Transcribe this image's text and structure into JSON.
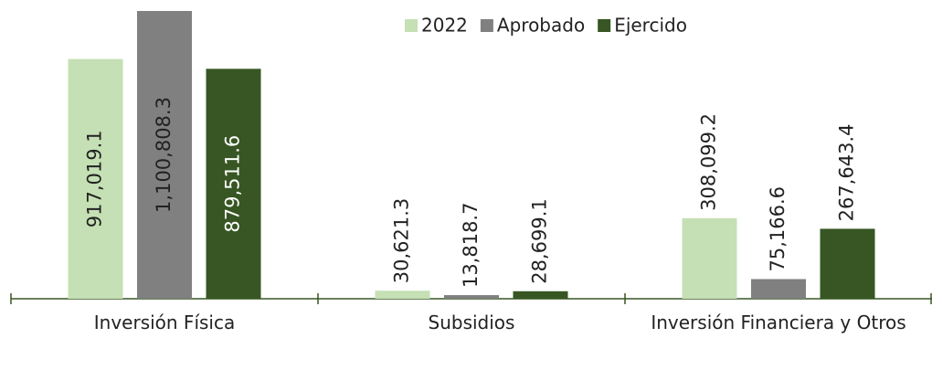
{
  "chart_data": {
    "type": "bar",
    "categories": [
      "Inversión Física",
      "Subsidios",
      "Inversión Financiera y Otros"
    ],
    "series": [
      {
        "name": "2022",
        "color": "#c5e0b4",
        "values": [
          917019.1,
          30621.3,
          308099.2
        ],
        "value_labels": [
          "917,019.1",
          "30,621.3",
          "308,099.2"
        ]
      },
      {
        "name": "Aprobado",
        "color": "#808080",
        "values": [
          1100808.3,
          13818.7,
          75166.6
        ],
        "value_labels": [
          "1,100,808.3",
          "13,818.7",
          "75,166.6"
        ]
      },
      {
        "name": "Ejercido",
        "color": "#375623",
        "values": [
          879511.6,
          28699.1,
          267643.4
        ],
        "value_labels": [
          "879,511.6",
          "28,699.1",
          "267,643.4"
        ]
      }
    ],
    "legend": "top"
  }
}
